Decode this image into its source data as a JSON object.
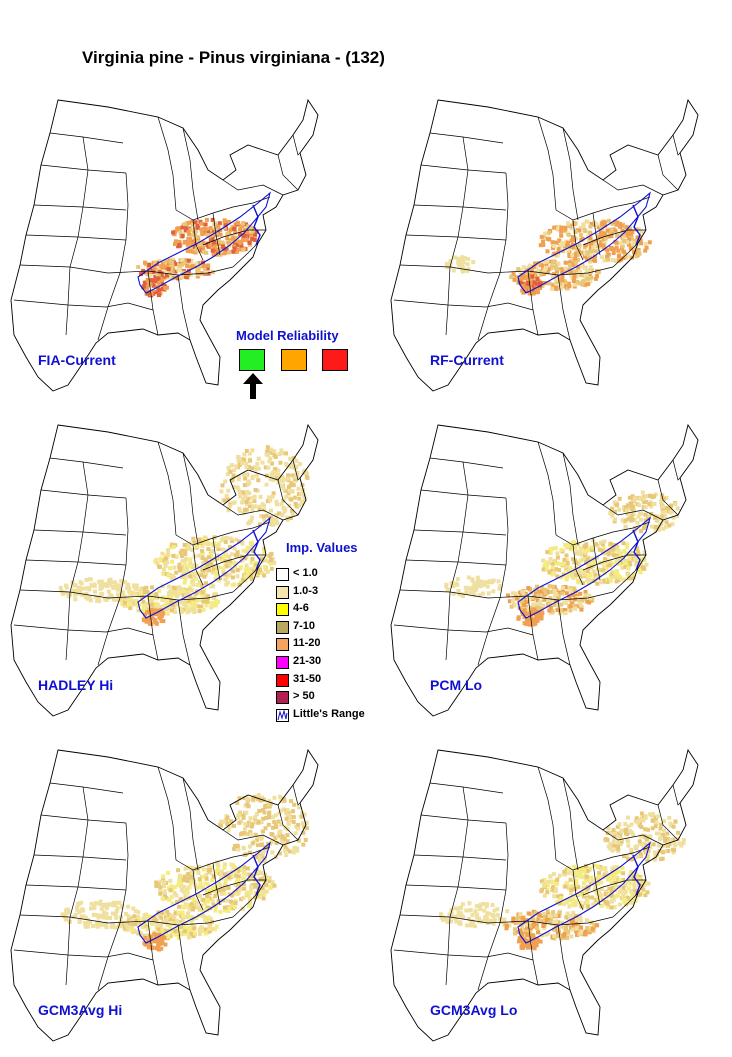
{
  "title": "Virginia pine - Pinus virginiana - (132)",
  "panels": [
    {
      "label": "FIA-Current"
    },
    {
      "label": "RF-Current"
    },
    {
      "label": "HADLEY Hi"
    },
    {
      "label": "PCM Lo"
    },
    {
      "label": "GCM3Avg Hi"
    },
    {
      "label": "GCM3Avg Lo"
    }
  ],
  "model_reliability": {
    "title": "Model Reliability",
    "swatches": [
      {
        "name": "high",
        "color": "#22ee22",
        "selected": true
      },
      {
        "name": "medium",
        "color": "#ffa500",
        "selected": false
      },
      {
        "name": "low",
        "color": "#ff1a1a",
        "selected": false
      }
    ],
    "indicator_icon": "up-arrow-icon"
  },
  "legend": {
    "title": "Imp. Values",
    "items": [
      {
        "label": "< 1.0",
        "color": "#ffffff"
      },
      {
        "label": "1.0-3",
        "color": "#f5e6b0"
      },
      {
        "label": "4-6",
        "color": "#ffff00"
      },
      {
        "label": "7-10",
        "color": "#b8a860"
      },
      {
        "label": "11-20",
        "color": "#f4a460"
      },
      {
        "label": "21-30",
        "color": "#ff00ff"
      },
      {
        "label": "31-50",
        "color": "#ff0000"
      },
      {
        "label": "> 50",
        "color": "#b02050"
      }
    ],
    "range_label": "Little's Range",
    "range_color": "#1010d0"
  }
}
